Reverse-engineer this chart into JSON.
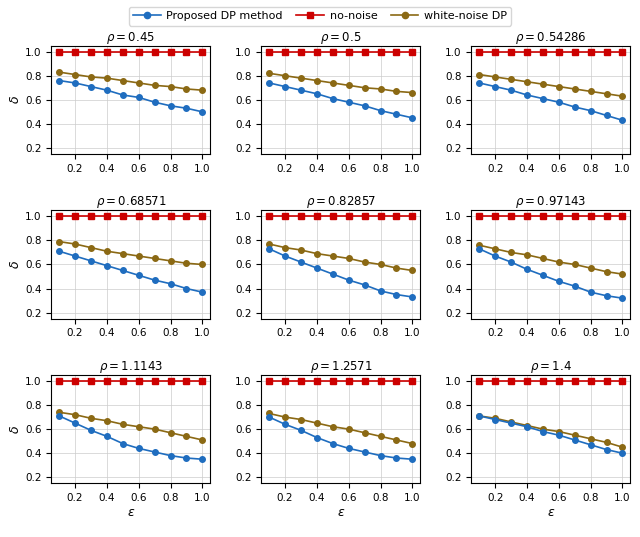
{
  "rho_values": [
    0.45,
    0.5,
    0.54286,
    0.68571,
    0.82857,
    0.97143,
    1.1143,
    1.2571,
    1.4
  ],
  "rho_labels": [
    "0.45",
    "0.5",
    "0.54286",
    "0.68571",
    "0.82857",
    "0.97143",
    "1.1143",
    "1.2571",
    "1.4"
  ],
  "epsilon_values": [
    0.1,
    0.2,
    0.3,
    0.4,
    0.5,
    0.6,
    0.7,
    0.8,
    0.9,
    1.0
  ],
  "color_proposed": "#1f6dbf",
  "color_nonoise": "#cc0000",
  "color_whitenoise": "#8B6914",
  "legend_labels": [
    "Proposed DP method",
    "no-noise",
    "white-noise DP"
  ],
  "xlabel": "$\\epsilon$",
  "ylabel": "$\\delta$",
  "ylim": [
    0.15,
    1.05
  ],
  "yticks": [
    0.2,
    0.4,
    0.6,
    0.8,
    1.0
  ],
  "xticks": [
    0.2,
    0.4,
    0.6,
    0.8,
    1.0
  ]
}
